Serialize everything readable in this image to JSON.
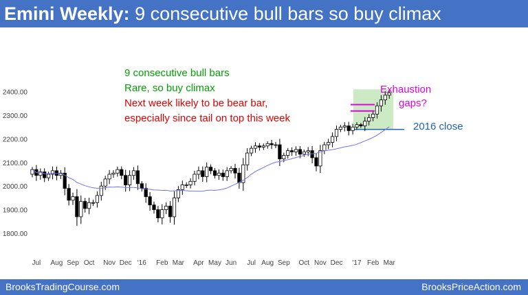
{
  "header": {
    "title_bold": "Emini Weekly:",
    "title_rest": "9 consecutive bull bars so buy climax",
    "bg_color": "#4472c4"
  },
  "footer": {
    "left": "BrooksTradingCourse.com",
    "right": "BrooksPriceAction.com"
  },
  "annotations": {
    "line1": "9 consecutive bull bars",
    "line2": "Rare, so buy climax",
    "line3": "Next week likely to be bear bar,",
    "line4": "especially since tail on top this week",
    "exhaustion1": "Exhaustion",
    "exhaustion2": "gaps?",
    "close_2016": "2016 close"
  },
  "chart_data": {
    "type": "candlestick",
    "title": "Emini Weekly: 9 consecutive bull bars so buy climax",
    "y_ticks": [
      "1800.00",
      "1900.00",
      "2000.00",
      "2100.00",
      "2200.00",
      "2300.00",
      "2400.00"
    ],
    "ylim": [
      1765,
      2415
    ],
    "x_ticks": [
      {
        "label": "Jul",
        "week": 1
      },
      {
        "label": "Aug",
        "week": 6
      },
      {
        "label": "Sep",
        "week": 10
      },
      {
        "label": "Oct",
        "week": 14
      },
      {
        "label": "Nov",
        "week": 19
      },
      {
        "label": "Dec",
        "week": 23
      },
      {
        "label": "'16",
        "week": 27
      },
      {
        "label": "Feb",
        "week": 32
      },
      {
        "label": "Mar",
        "week": 36
      },
      {
        "label": "Apr",
        "week": 41
      },
      {
        "label": "May",
        "week": 45
      },
      {
        "label": "Jun",
        "week": 49
      },
      {
        "label": "Jul",
        "week": 54
      },
      {
        "label": "Aug",
        "week": 58
      },
      {
        "label": "Sep",
        "week": 62
      },
      {
        "label": "Oct",
        "week": 67
      },
      {
        "label": "Nov",
        "week": 71
      },
      {
        "label": "Dec",
        "week": 75
      },
      {
        "label": "'17",
        "week": 80
      },
      {
        "label": "Feb",
        "week": 84
      },
      {
        "label": "Mar",
        "week": 88
      }
    ],
    "moving_average": "20-week",
    "level_2016_close": 2240,
    "exhaustion_gaps": [
      2318,
      2345
    ],
    "highlight_weeks": [
      80,
      88
    ],
    "closes": [
      2070,
      2045,
      2060,
      2035,
      2050,
      2065,
      2045,
      2055,
      1990,
      1940,
      1955,
      1870,
      1935,
      1905,
      1930,
      1930,
      1960,
      2000,
      2030,
      2050,
      2055,
      2070,
      2045,
      2005,
      2045,
      2065,
      2010,
      1990,
      1955,
      1920,
      1900,
      1865,
      1900,
      1915,
      1870,
      1950,
      1985,
      2005,
      2005,
      2020,
      2050,
      2065,
      2040,
      2080,
      2065,
      2045,
      2055,
      2040,
      2065,
      2075,
      2055,
      2015,
      2090,
      2140,
      2160,
      2170,
      2165,
      2170,
      2180,
      2175,
      2175,
      2115,
      2130,
      2150,
      2145,
      2155,
      2135,
      2145,
      2150,
      2120,
      2085,
      2150,
      2175,
      2185,
      2210,
      2240,
      2250,
      2255,
      2235,
      2250,
      2260,
      2255,
      2275,
      2290,
      2305,
      2340,
      2365,
      2385,
      2395
    ]
  }
}
